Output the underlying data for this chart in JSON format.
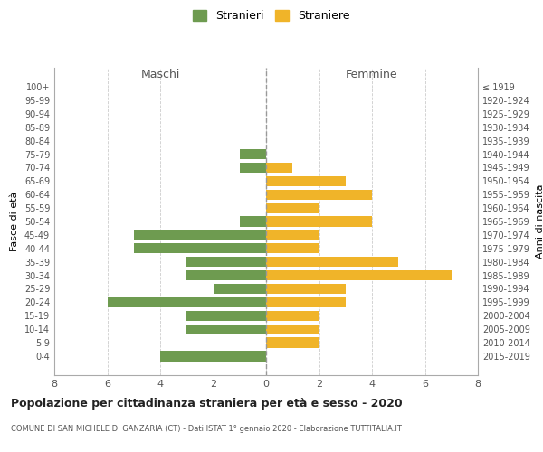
{
  "age_groups": [
    "100+",
    "95-99",
    "90-94",
    "85-89",
    "80-84",
    "75-79",
    "70-74",
    "65-69",
    "60-64",
    "55-59",
    "50-54",
    "45-49",
    "40-44",
    "35-39",
    "30-34",
    "25-29",
    "20-24",
    "15-19",
    "10-14",
    "5-9",
    "0-4"
  ],
  "birth_years": [
    "≤ 1919",
    "1920-1924",
    "1925-1929",
    "1930-1934",
    "1935-1939",
    "1940-1944",
    "1945-1949",
    "1950-1954",
    "1955-1959",
    "1960-1964",
    "1965-1969",
    "1970-1974",
    "1975-1979",
    "1980-1984",
    "1985-1989",
    "1990-1994",
    "1995-1999",
    "2000-2004",
    "2005-2009",
    "2010-2014",
    "2015-2019"
  ],
  "maschi": [
    0,
    0,
    0,
    0,
    0,
    1,
    1,
    0,
    0,
    0,
    1,
    5,
    5,
    3,
    3,
    2,
    6,
    3,
    3,
    0,
    4
  ],
  "femmine": [
    0,
    0,
    0,
    0,
    0,
    0,
    1,
    3,
    4,
    2,
    4,
    2,
    2,
    5,
    7,
    3,
    3,
    2,
    2,
    2,
    0
  ],
  "maschi_color": "#6e9b50",
  "femmine_color": "#f0b429",
  "title": "Popolazione per cittadinanza straniera per età e sesso - 2020",
  "subtitle": "COMUNE DI SAN MICHELE DI GANZARIA (CT) - Dati ISTAT 1° gennaio 2020 - Elaborazione TUTTITALIA.IT",
  "ylabel_left": "Fasce di età",
  "ylabel_right": "Anni di nascita",
  "xlabel_left": "Maschi",
  "xlabel_right": "Femmine",
  "legend_maschi": "Stranieri",
  "legend_femmine": "Straniere",
  "xlim": 8,
  "background_color": "#ffffff",
  "grid_color": "#cccccc"
}
